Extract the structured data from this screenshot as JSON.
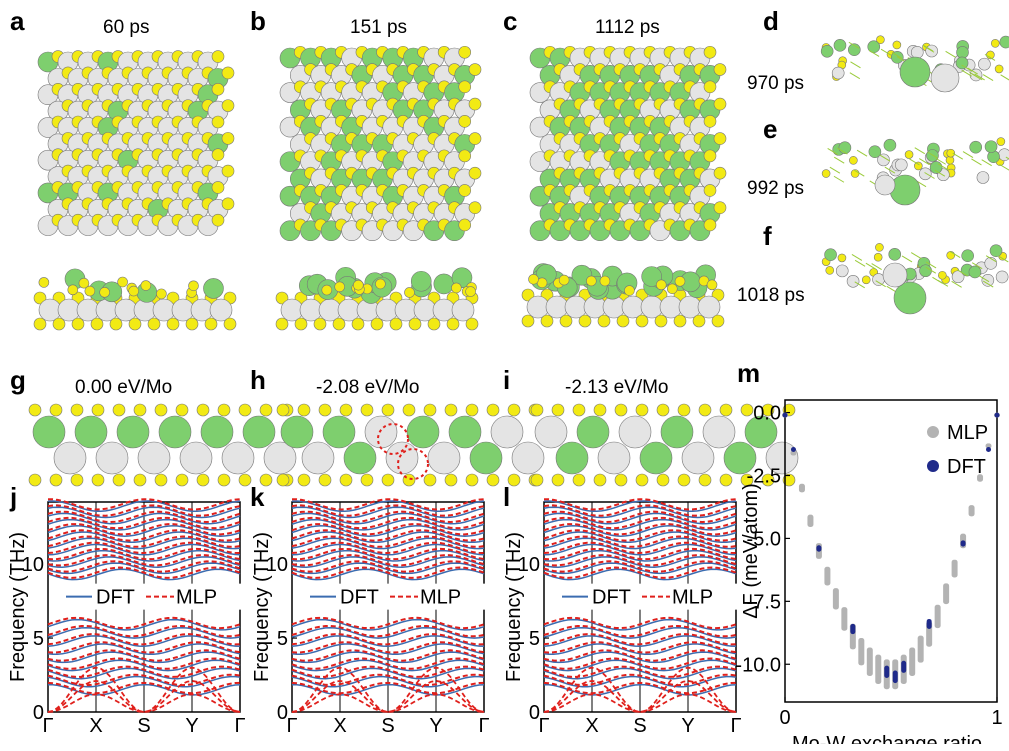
{
  "panels": {
    "a": {
      "letter": "a",
      "title": "60 ps"
    },
    "b": {
      "letter": "b",
      "title": "151 ps"
    },
    "c": {
      "letter": "c",
      "title": "1112 ps"
    },
    "d": {
      "letter": "d",
      "time": "970 ps"
    },
    "e": {
      "letter": "e",
      "time": "992 ps"
    },
    "f": {
      "letter": "f",
      "time": "1018 ps"
    },
    "g": {
      "letter": "g",
      "title": "0.00 eV/Mo"
    },
    "h": {
      "letter": "h",
      "title": "-2.08 eV/Mo"
    },
    "i": {
      "letter": "i",
      "title": "-2.13 eV/Mo"
    },
    "j": {
      "letter": "j"
    },
    "k": {
      "letter": "k"
    },
    "l": {
      "letter": "l"
    },
    "m": {
      "letter": "m"
    }
  },
  "atom_colors": {
    "green": "#7ecf6e",
    "white": "#e4e4e4",
    "yellow": "#f2ea14"
  },
  "phonon": {
    "ylabel": "Frequency (THz)",
    "kpoints": [
      "Γ",
      "X",
      "S",
      "Y",
      "Γ"
    ],
    "yticks": [
      "0",
      "5",
      "10"
    ],
    "legend": {
      "dft": "DFT",
      "mlp": "MLP"
    },
    "colors": {
      "dft": "#3b6cb0",
      "mlp": "#e0201c"
    }
  },
  "chart_data": {
    "type": "scatter",
    "xlabel": "Mo-W exchange ratio",
    "ylabel": "ΔF (meV/atom)",
    "xticks": [
      "0",
      "1"
    ],
    "yticks": [
      "0.0",
      "-2.5",
      "-5.0",
      "-7.5",
      "-10.0"
    ],
    "xlim": [
      0,
      1
    ],
    "ylim": [
      -11.5,
      0.5
    ],
    "series": [
      {
        "name": "MLP",
        "color": "#b3b3b3",
        "x": [
          0.0,
          0.04,
          0.08,
          0.12,
          0.16,
          0.2,
          0.24,
          0.28,
          0.32,
          0.36,
          0.4,
          0.44,
          0.48,
          0.52,
          0.56,
          0.6,
          0.64,
          0.68,
          0.72,
          0.76,
          0.8,
          0.84,
          0.88,
          0.92,
          0.96,
          1.0
        ],
        "y": [
          0.0,
          -1.6,
          -3.0,
          -4.3,
          -5.5,
          -6.5,
          -7.4,
          -8.2,
          -8.9,
          -9.5,
          -9.9,
          -10.2,
          -10.4,
          -10.4,
          -10.2,
          -9.9,
          -9.4,
          -8.8,
          -8.1,
          -7.2,
          -6.2,
          -5.1,
          -3.9,
          -2.6,
          -1.3,
          0.0
        ]
      },
      {
        "name": "DFT",
        "color": "#1f2a8a",
        "x": [
          0.0,
          0.04,
          0.16,
          0.32,
          0.48,
          0.52,
          0.56,
          0.68,
          0.84,
          0.96,
          1.0
        ],
        "y": [
          0.0,
          -1.4,
          -5.4,
          -8.6,
          -10.3,
          -10.5,
          -10.1,
          -8.4,
          -5.2,
          -1.4,
          0.0
        ]
      }
    ]
  }
}
